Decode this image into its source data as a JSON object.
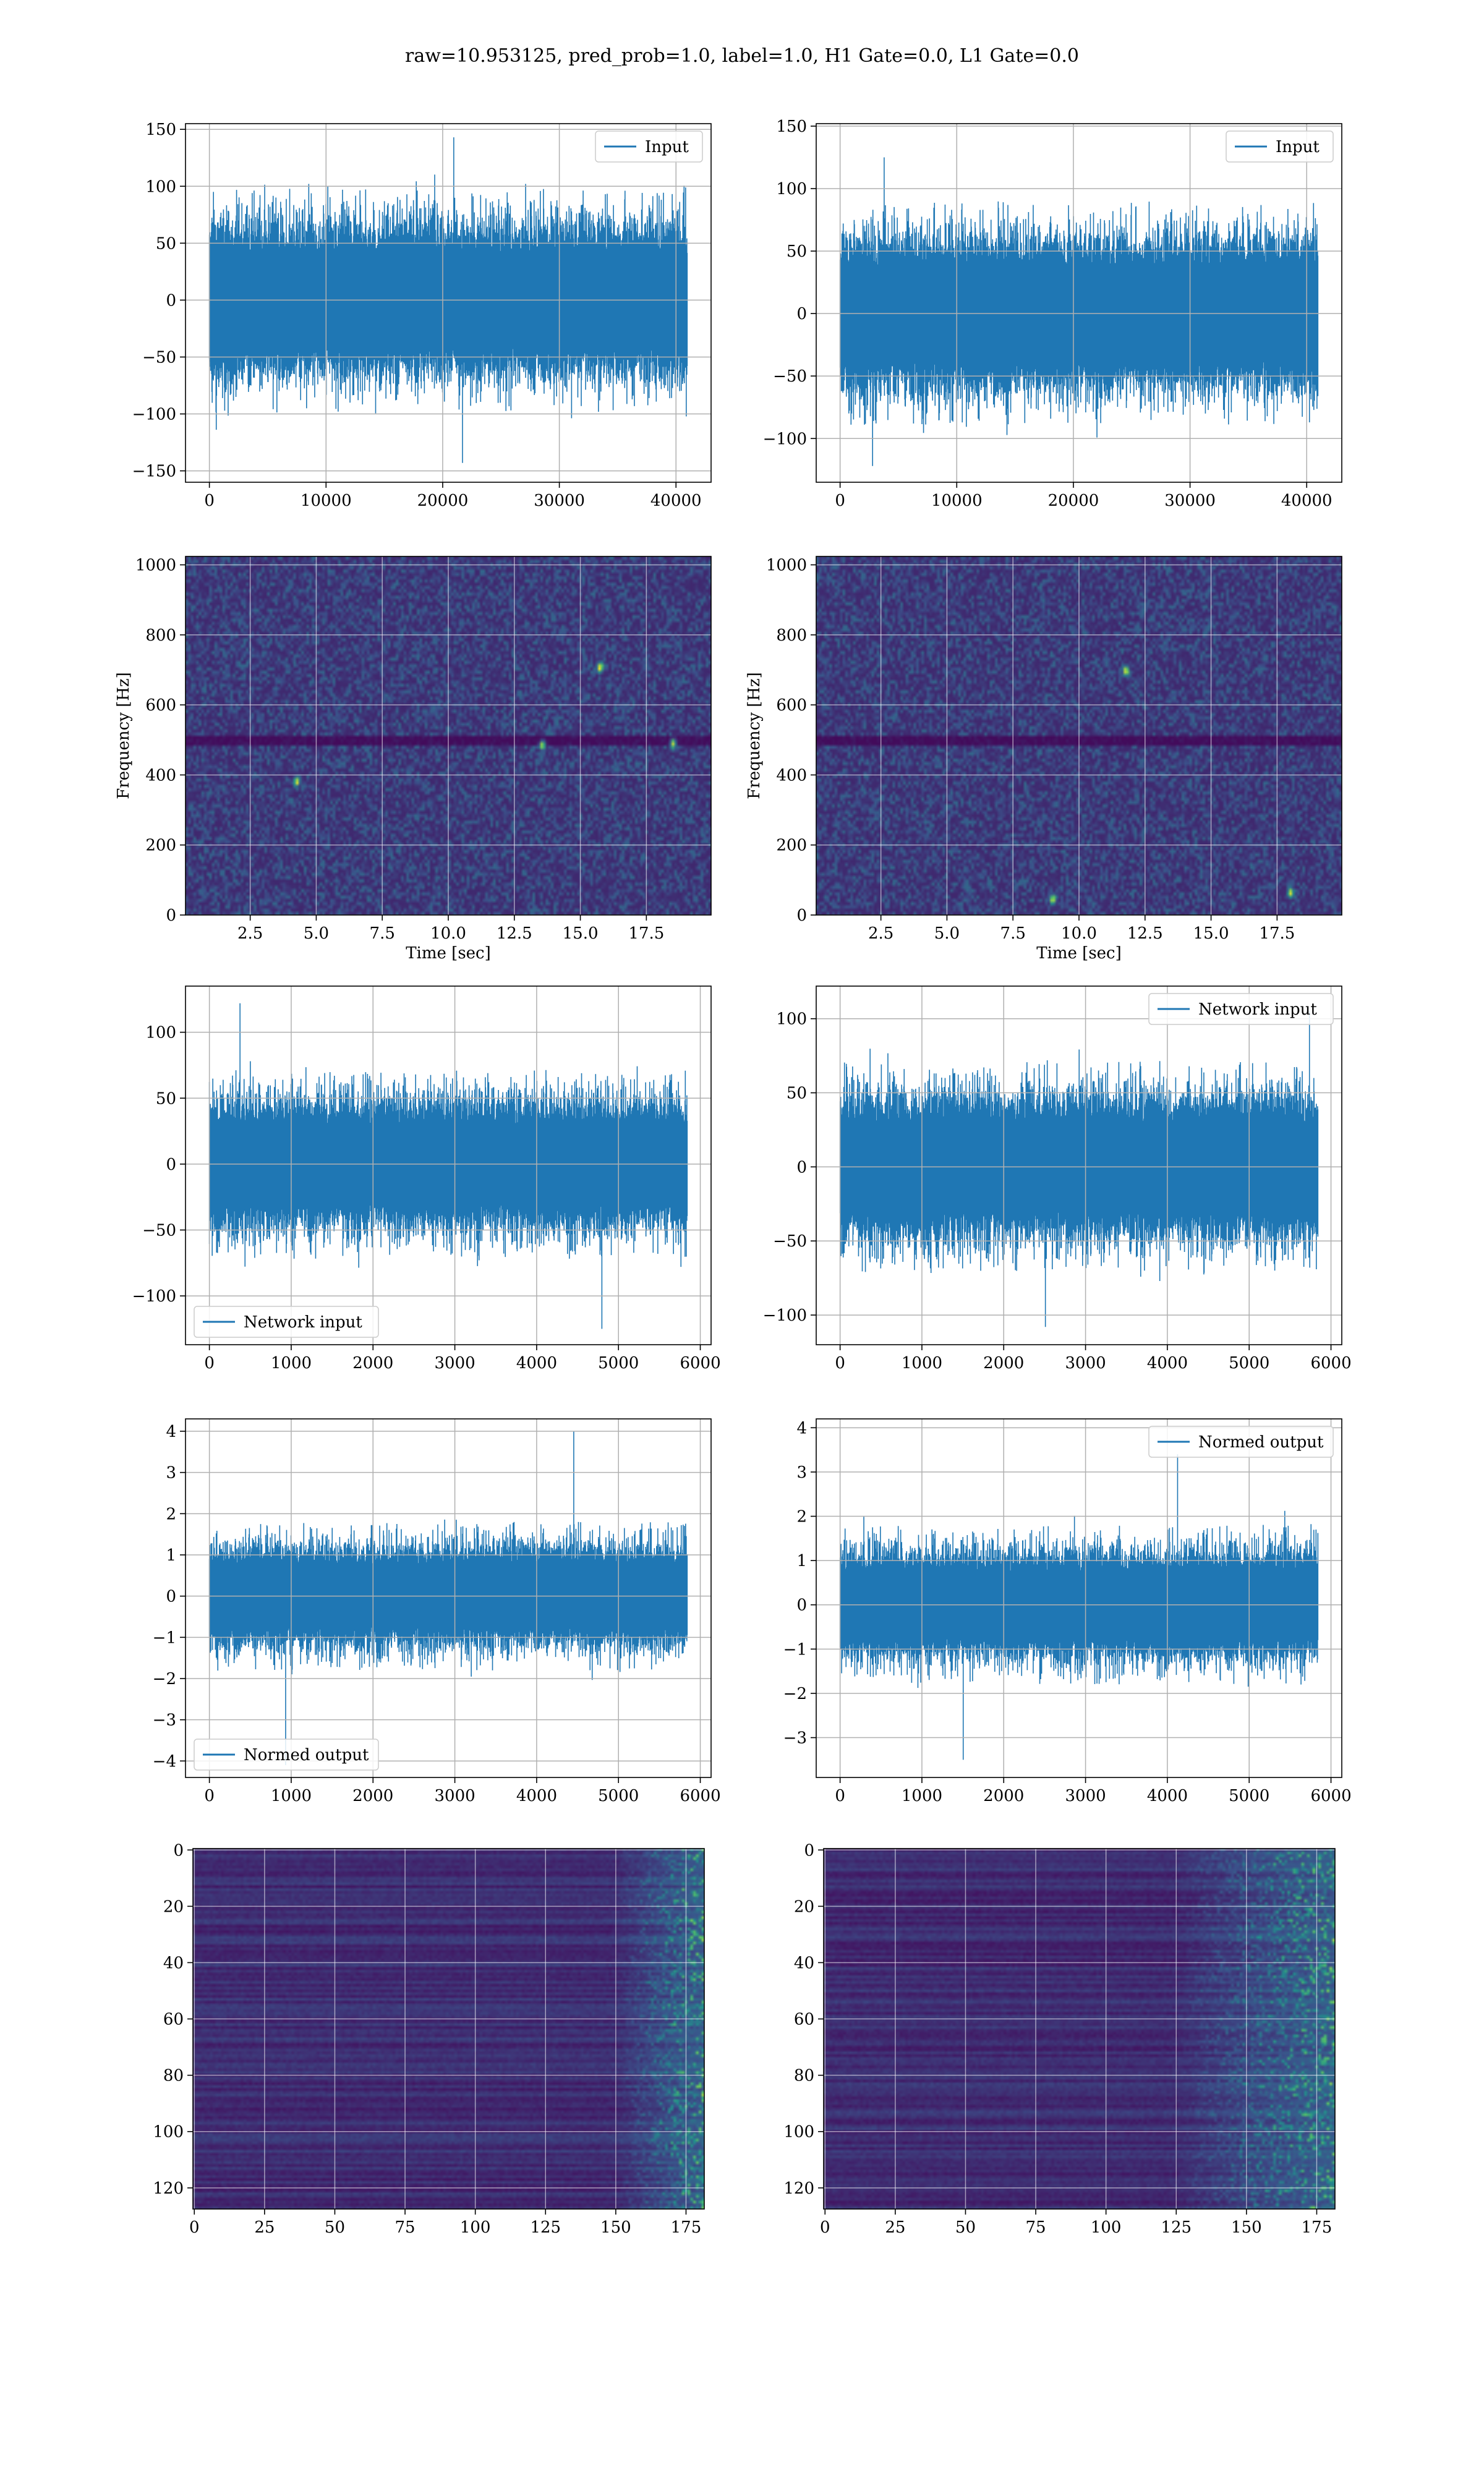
{
  "figure": {
    "title": "raw=10.953125, pred_prob=1.0, label=1.0, H1 Gate=0.0, L1 Gate=0.0"
  },
  "colors": {
    "line": "#1f77b4",
    "grid": "#b0b0b0",
    "axes": "#000000",
    "viridis_low": "#440154",
    "viridis_mid": "#21918c",
    "viridis_high": "#fde725"
  },
  "chart_data": [
    {
      "id": "input-h1",
      "type": "line",
      "series": [
        {
          "name": "Input",
          "x_range": [
            0,
            40960
          ],
          "amplitude": 55,
          "peak_max": 143,
          "peak_min": -143
        }
      ],
      "xlim": [
        -2048,
        43008
      ],
      "ylim": [
        -160,
        155
      ],
      "xticks": [
        0,
        10000,
        20000,
        30000,
        40000
      ],
      "xticklabels": [
        "0",
        "10000",
        "20000",
        "30000",
        "40000"
      ],
      "yticks": [
        -150,
        -100,
        -50,
        0,
        50,
        100,
        150
      ],
      "yticklabels": [
        "−150",
        "−100",
        "−50",
        "0",
        "50",
        "100",
        "150"
      ],
      "legend": "upper right",
      "grid": true,
      "xlabel": "",
      "ylabel": "",
      "seed": 11
    },
    {
      "id": "input-l1",
      "type": "line",
      "series": [
        {
          "name": "Input",
          "x_range": [
            0,
            40960
          ],
          "amplitude": 50,
          "peak_max": 125,
          "peak_min": -122
        }
      ],
      "xlim": [
        -2048,
        43008
      ],
      "ylim": [
        -135,
        152
      ],
      "xticks": [
        0,
        10000,
        20000,
        30000,
        40000
      ],
      "xticklabels": [
        "0",
        "10000",
        "20000",
        "30000",
        "40000"
      ],
      "yticks": [
        -100,
        -50,
        0,
        50,
        100,
        150
      ],
      "yticklabels": [
        "−100",
        "−50",
        "0",
        "50",
        "100",
        "150"
      ],
      "legend": "upper right",
      "grid": true,
      "xlabel": "",
      "ylabel": "",
      "seed": 23
    },
    {
      "id": "spec-h1",
      "type": "heatmap",
      "xlim": [
        0.05,
        19.95
      ],
      "ylim": [
        0,
        1024
      ],
      "xticks": [
        2.5,
        5.0,
        7.5,
        10.0,
        12.5,
        15.0,
        17.5
      ],
      "xticklabels": [
        "2.5",
        "5.0",
        "7.5",
        "10.0",
        "12.5",
        "15.0",
        "17.5"
      ],
      "yticks": [
        0,
        200,
        400,
        600,
        800,
        1000
      ],
      "yticklabels": [
        "0",
        "200",
        "400",
        "600",
        "800",
        "1000"
      ],
      "xlabel": "Time [sec]",
      "ylabel": "Frequency [Hz]",
      "grid": true,
      "hot_spots": [
        [
          4.2,
          380
        ],
        [
          13.6,
          485
        ],
        [
          15.8,
          710
        ],
        [
          18.6,
          490
        ]
      ],
      "dark_band_hz": 500,
      "seed": 37
    },
    {
      "id": "spec-l1",
      "type": "heatmap",
      "xlim": [
        0.05,
        19.95
      ],
      "ylim": [
        0,
        1024
      ],
      "xticks": [
        2.5,
        5.0,
        7.5,
        10.0,
        12.5,
        15.0,
        17.5
      ],
      "xticklabels": [
        "2.5",
        "5.0",
        "7.5",
        "10.0",
        "12.5",
        "15.0",
        "17.5"
      ],
      "yticks": [
        0,
        200,
        400,
        600,
        800,
        1000
      ],
      "yticklabels": [
        "0",
        "200",
        "400",
        "600",
        "800",
        "1000"
      ],
      "xlabel": "Time [sec]",
      "ylabel": "Frequency [Hz]",
      "grid": true,
      "hot_spots": [
        [
          18.1,
          60
        ],
        [
          11.8,
          700
        ],
        [
          9.0,
          40
        ]
      ],
      "dark_band_hz": 500,
      "seed": 41
    },
    {
      "id": "netin-h1",
      "type": "line",
      "series": [
        {
          "name": "Network input",
          "x_range": [
            0,
            5840
          ],
          "amplitude": 40,
          "peak_max": 122,
          "peak_min": -125
        }
      ],
      "xlim": [
        -292,
        6132
      ],
      "ylim": [
        -137,
        135
      ],
      "xticks": [
        0,
        1000,
        2000,
        3000,
        4000,
        5000,
        6000
      ],
      "xticklabels": [
        "0",
        "1000",
        "2000",
        "3000",
        "4000",
        "5000",
        "6000"
      ],
      "yticks": [
        -100,
        -50,
        0,
        50,
        100
      ],
      "yticklabels": [
        "−100",
        "−50",
        "0",
        "50",
        "100"
      ],
      "legend": "lower left",
      "grid": true,
      "xlabel": "",
      "ylabel": "",
      "seed": 53
    },
    {
      "id": "netin-l1",
      "type": "line",
      "series": [
        {
          "name": "Network input",
          "x_range": [
            0,
            5840
          ],
          "amplitude": 40,
          "peak_max": 105,
          "peak_min": -108
        }
      ],
      "xlim": [
        -292,
        6132
      ],
      "ylim": [
        -120,
        122
      ],
      "xticks": [
        0,
        1000,
        2000,
        3000,
        4000,
        5000,
        6000
      ],
      "xticklabels": [
        "0",
        "1000",
        "2000",
        "3000",
        "4000",
        "5000",
        "6000"
      ],
      "yticks": [
        -100,
        -50,
        0,
        50,
        100
      ],
      "yticklabels": [
        "−100",
        "−50",
        "0",
        "50",
        "100"
      ],
      "legend": "upper right",
      "grid": true,
      "xlabel": "",
      "ylabel": "",
      "seed": 67
    },
    {
      "id": "normed-h1",
      "type": "line",
      "series": [
        {
          "name": "Normed output",
          "x_range": [
            0,
            5840
          ],
          "amplitude": 1.0,
          "peak_max": 4.0,
          "peak_min": -4.1
        }
      ],
      "xlim": [
        -292,
        6132
      ],
      "ylim": [
        -4.4,
        4.3
      ],
      "xticks": [
        0,
        1000,
        2000,
        3000,
        4000,
        5000,
        6000
      ],
      "xticklabels": [
        "0",
        "1000",
        "2000",
        "3000",
        "4000",
        "5000",
        "6000"
      ],
      "yticks": [
        -4,
        -3,
        -2,
        -1,
        0,
        1,
        2,
        3,
        4
      ],
      "yticklabels": [
        "−4",
        "−3",
        "−2",
        "−1",
        "0",
        "1",
        "2",
        "3",
        "4"
      ],
      "legend": "lower left",
      "grid": true,
      "xlabel": "",
      "ylabel": "",
      "seed": 71
    },
    {
      "id": "normed-l1",
      "type": "line",
      "series": [
        {
          "name": "Normed output",
          "x_range": [
            0,
            5840
          ],
          "amplitude": 1.0,
          "peak_max": 3.4,
          "peak_min": -3.5
        }
      ],
      "xlim": [
        -292,
        6132
      ],
      "ylim": [
        -3.9,
        4.2
      ],
      "xticks": [
        0,
        1000,
        2000,
        3000,
        4000,
        5000,
        6000
      ],
      "xticklabels": [
        "0",
        "1000",
        "2000",
        "3000",
        "4000",
        "5000",
        "6000"
      ],
      "yticks": [
        -3,
        -2,
        -1,
        0,
        1,
        2,
        3,
        4
      ],
      "yticklabels": [
        "−3",
        "−2",
        "−1",
        "0",
        "1",
        "2",
        "3",
        "4"
      ],
      "legend": "upper right",
      "grid": true,
      "xlabel": "",
      "ylabel": "",
      "seed": 83
    },
    {
      "id": "features-h1",
      "type": "heatmap",
      "xlim": [
        -0.5,
        181.5
      ],
      "ylim": [
        127.5,
        -0.5
      ],
      "xticks": [
        0,
        25,
        50,
        75,
        100,
        125,
        150,
        175
      ],
      "xticklabels": [
        "0",
        "25",
        "50",
        "75",
        "100",
        "125",
        "150",
        "175"
      ],
      "yticks": [
        0,
        20,
        40,
        60,
        80,
        100,
        120
      ],
      "yticklabels": [
        "0",
        "20",
        "40",
        "60",
        "80",
        "100",
        "120"
      ],
      "xlabel": "",
      "ylabel": "",
      "grid": true,
      "active_columns": [
        150,
        181
      ],
      "seed": 97
    },
    {
      "id": "features-l1",
      "type": "heatmap",
      "xlim": [
        -0.5,
        181.5
      ],
      "ylim": [
        127.5,
        -0.5
      ],
      "xticks": [
        0,
        25,
        50,
        75,
        100,
        125,
        150,
        175
      ],
      "xticklabels": [
        "0",
        "25",
        "50",
        "75",
        "100",
        "125",
        "150",
        "175"
      ],
      "yticks": [
        0,
        20,
        40,
        60,
        80,
        100,
        120
      ],
      "yticklabels": [
        "0",
        "20",
        "40",
        "60",
        "80",
        "100",
        "120"
      ],
      "xlabel": "",
      "ylabel": "",
      "grid": true,
      "active_columns": [
        125,
        181
      ],
      "seed": 101
    }
  ]
}
